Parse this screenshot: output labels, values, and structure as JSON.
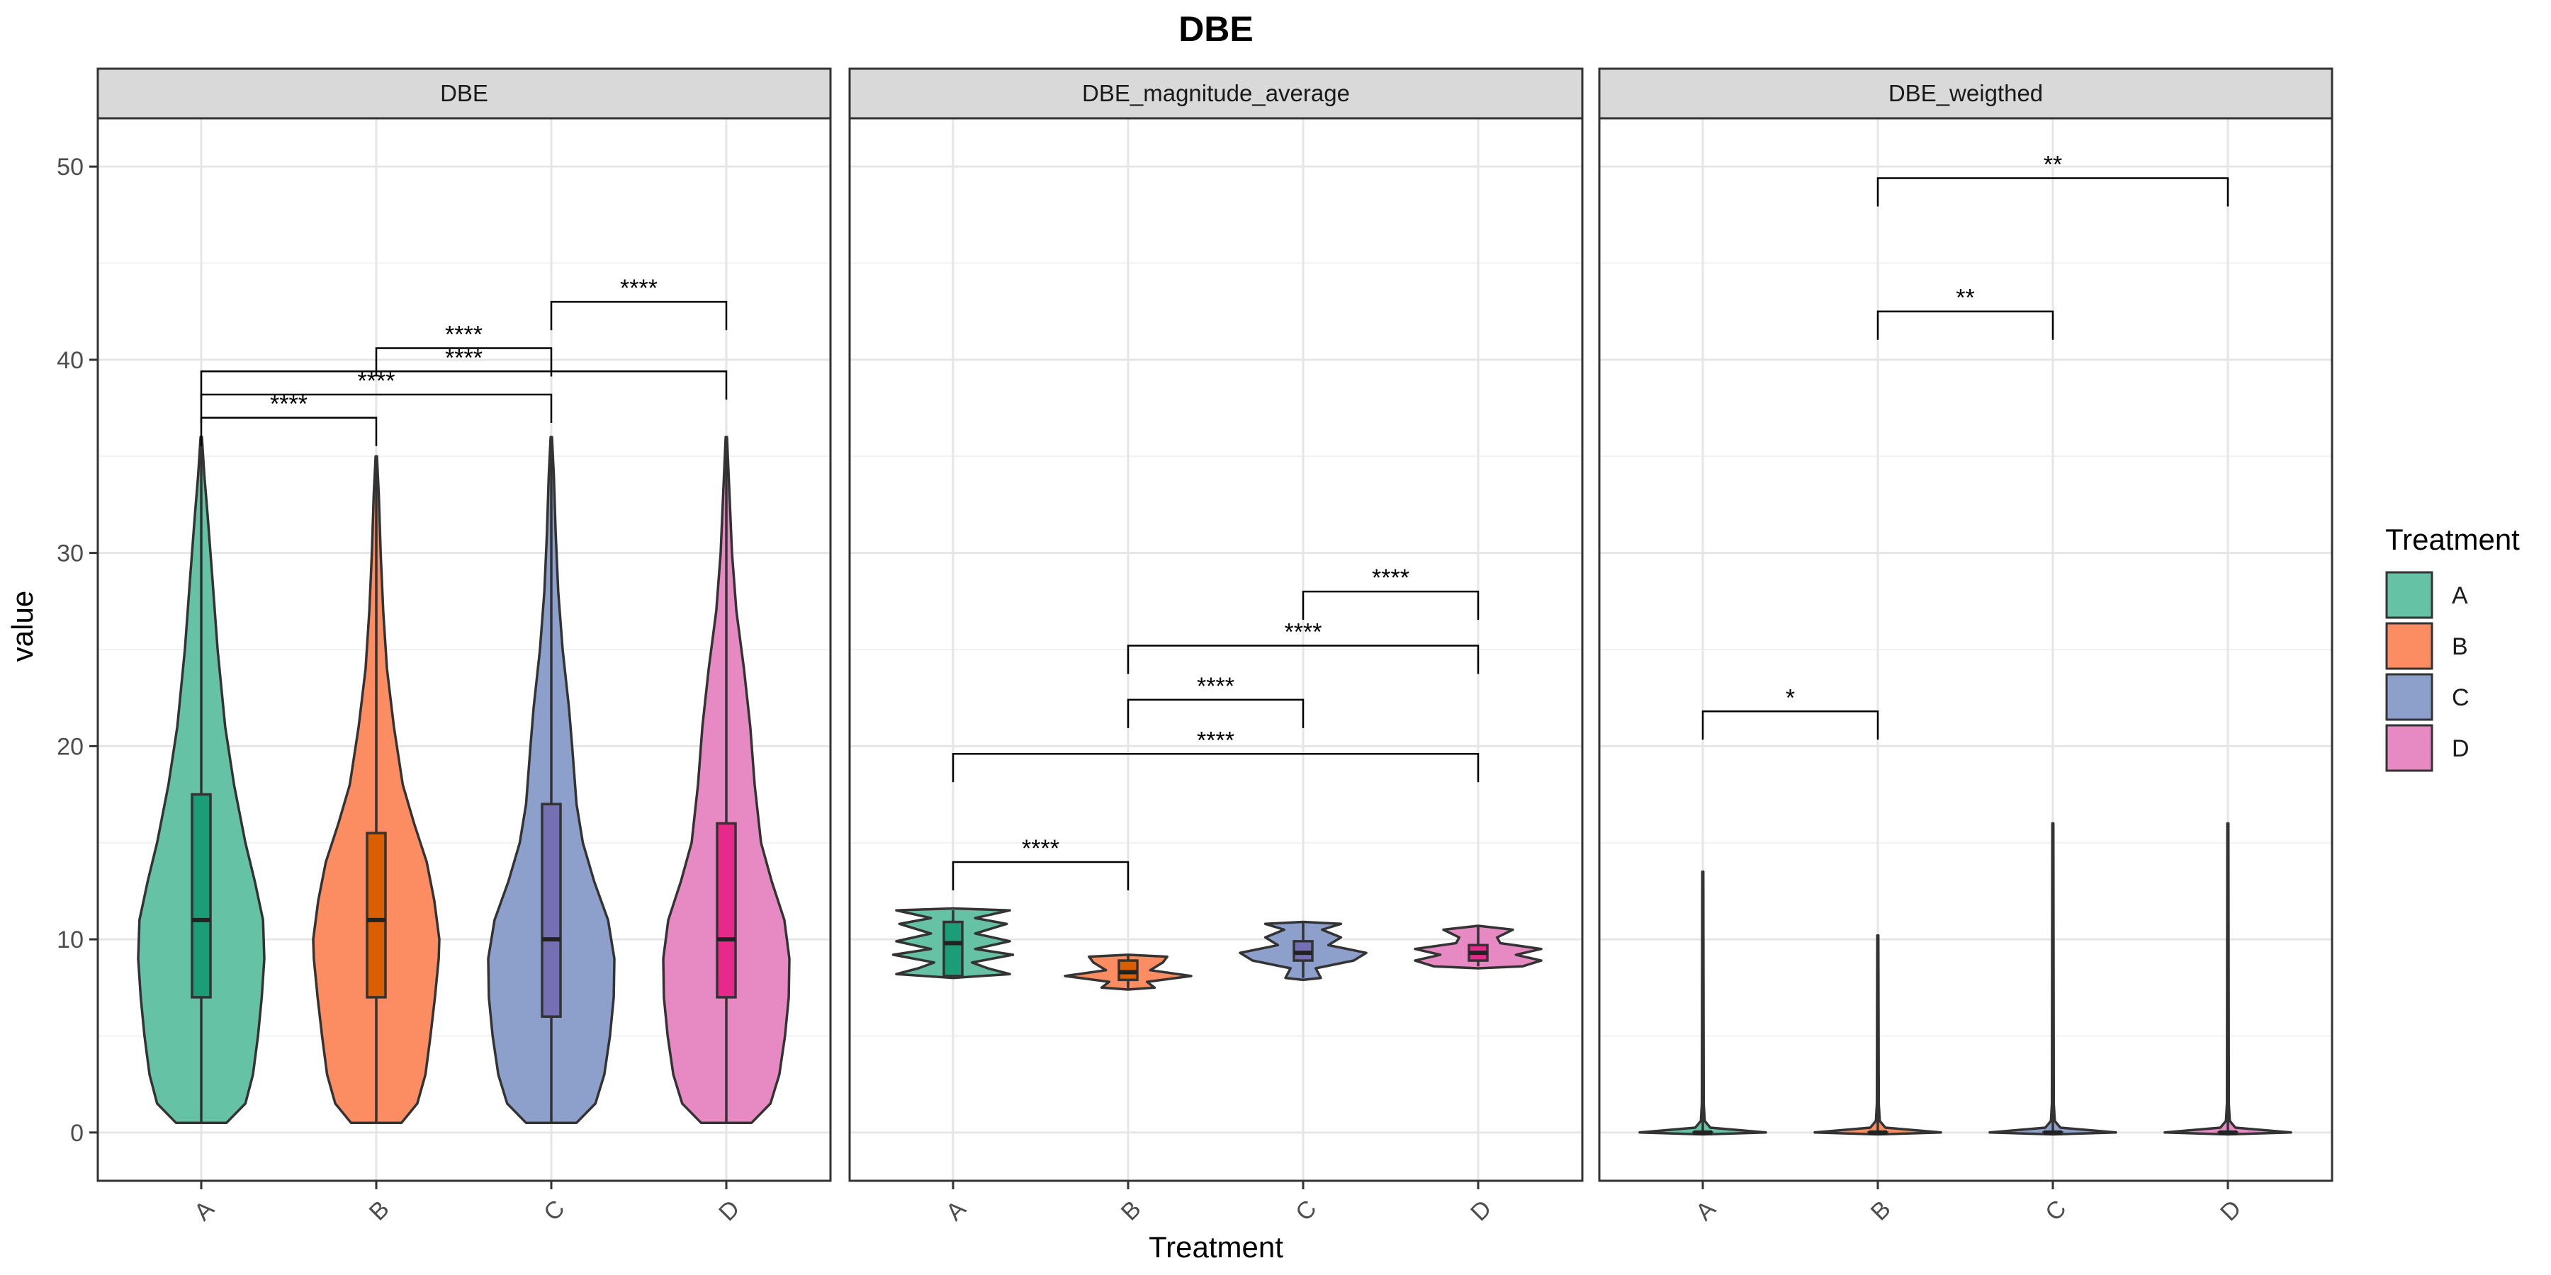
{
  "chart_data": {
    "type": "violin",
    "title": "DBE",
    "xlabel": "Treatment",
    "ylabel": "value",
    "ylim": [
      -2.5,
      52.5
    ],
    "y_ticks": [
      0,
      10,
      20,
      30,
      40,
      50
    ],
    "categories": [
      "A",
      "B",
      "C",
      "D"
    ],
    "grid": true,
    "legend": {
      "title": "Treatment",
      "position": "right",
      "entries": [
        {
          "label": "A",
          "color": "#66C2A5"
        },
        {
          "label": "B",
          "color": "#FC8D62"
        },
        {
          "label": "C",
          "color": "#8DA0CB"
        },
        {
          "label": "D",
          "color": "#E78AC3"
        }
      ]
    },
    "box_colors": [
      "#1B9E77",
      "#D95F02",
      "#7570B3",
      "#E7298A"
    ],
    "panels": [
      {
        "label": "DBE",
        "groups": [
          {
            "category": "A",
            "min": 0.5,
            "q1": 7,
            "median": 11,
            "q3": 17.5,
            "max": 36,
            "profile": [
              [
                0.5,
                0.4
              ],
              [
                1.5,
                0.7
              ],
              [
                3,
                0.82
              ],
              [
                5,
                0.9
              ],
              [
                7,
                0.96
              ],
              [
                9,
                1.0
              ],
              [
                11,
                0.98
              ],
              [
                13,
                0.85
              ],
              [
                15,
                0.7
              ],
              [
                18,
                0.52
              ],
              [
                21,
                0.38
              ],
              [
                25,
                0.26
              ],
              [
                29,
                0.17
              ],
              [
                32,
                0.1
              ],
              [
                34,
                0.05
              ],
              [
                36,
                0.01
              ]
            ]
          },
          {
            "category": "B",
            "min": 0.5,
            "q1": 7,
            "median": 11,
            "q3": 15.5,
            "max": 35,
            "profile": [
              [
                0.5,
                0.4
              ],
              [
                1.5,
                0.65
              ],
              [
                3,
                0.78
              ],
              [
                5,
                0.86
              ],
              [
                7,
                0.93
              ],
              [
                9,
                0.99
              ],
              [
                10,
                1.0
              ],
              [
                12,
                0.92
              ],
              [
                14,
                0.8
              ],
              [
                16,
                0.6
              ],
              [
                18,
                0.42
              ],
              [
                21,
                0.28
              ],
              [
                24,
                0.17
              ],
              [
                27,
                0.11
              ],
              [
                30,
                0.07
              ],
              [
                33,
                0.04
              ],
              [
                35,
                0.01
              ]
            ]
          },
          {
            "category": "C",
            "min": 0.5,
            "q1": 6,
            "median": 10,
            "q3": 17,
            "max": 36,
            "profile": [
              [
                0.5,
                0.4
              ],
              [
                1.5,
                0.7
              ],
              [
                3,
                0.84
              ],
              [
                5,
                0.93
              ],
              [
                7,
                0.99
              ],
              [
                9,
                1.0
              ],
              [
                11,
                0.9
              ],
              [
                13,
                0.68
              ],
              [
                15,
                0.5
              ],
              [
                17,
                0.4
              ],
              [
                20,
                0.33
              ],
              [
                22,
                0.28
              ],
              [
                25,
                0.18
              ],
              [
                28,
                0.11
              ],
              [
                31,
                0.07
              ],
              [
                34,
                0.04
              ],
              [
                36,
                0.01
              ]
            ]
          },
          {
            "category": "D",
            "min": 0.5,
            "q1": 7,
            "median": 10,
            "q3": 16,
            "max": 36,
            "profile": [
              [
                0.5,
                0.4
              ],
              [
                1.5,
                0.7
              ],
              [
                3,
                0.84
              ],
              [
                5,
                0.93
              ],
              [
                7,
                0.99
              ],
              [
                9,
                1.0
              ],
              [
                11,
                0.92
              ],
              [
                13,
                0.72
              ],
              [
                15,
                0.55
              ],
              [
                18,
                0.45
              ],
              [
                21,
                0.38
              ],
              [
                24,
                0.28
              ],
              [
                27,
                0.16
              ],
              [
                30,
                0.09
              ],
              [
                33,
                0.05
              ],
              [
                36,
                0.01
              ]
            ]
          }
        ],
        "brackets": [
          {
            "from": "A",
            "to": "B",
            "y": 37,
            "label": "****"
          },
          {
            "from": "A",
            "to": "C",
            "y": 38.2,
            "label": "****"
          },
          {
            "from": "A",
            "to": "D",
            "y": 39.4,
            "label": "****"
          },
          {
            "from": "B",
            "to": "C",
            "y": 40.6,
            "label": "****"
          },
          {
            "from": "C",
            "to": "D",
            "y": 43,
            "label": "****"
          }
        ]
      },
      {
        "label": "DBE_magnitude_average",
        "groups": [
          {
            "category": "A",
            "min": 8.1,
            "q1": 8.1,
            "median": 9.8,
            "q3": 10.9,
            "max": 11.5,
            "profile": [
              [
                8.0,
                0.0
              ],
              [
                8.2,
                0.9
              ],
              [
                8.5,
                0.55
              ],
              [
                8.8,
                0.3
              ],
              [
                9.2,
                0.95
              ],
              [
                9.5,
                0.35
              ],
              [
                9.9,
                0.9
              ],
              [
                10.3,
                0.35
              ],
              [
                10.8,
                0.85
              ],
              [
                11.1,
                0.35
              ],
              [
                11.5,
                0.9
              ],
              [
                11.6,
                0.0
              ]
            ]
          },
          {
            "category": "B",
            "min": 7.4,
            "q1": 7.9,
            "median": 8.3,
            "q3": 8.9,
            "max": 9.2,
            "profile": [
              [
                7.4,
                0.0
              ],
              [
                7.5,
                0.42
              ],
              [
                7.8,
                0.3
              ],
              [
                8.1,
                1.0
              ],
              [
                8.4,
                0.35
              ],
              [
                8.8,
                0.55
              ],
              [
                9.1,
                0.62
              ],
              [
                9.2,
                0.0
              ]
            ]
          },
          {
            "category": "C",
            "min": 8.0,
            "q1": 8.9,
            "median": 9.3,
            "q3": 9.9,
            "max": 10.9,
            "profile": [
              [
                7.9,
                0.0
              ],
              [
                8.0,
                0.28
              ],
              [
                8.5,
                0.2
              ],
              [
                8.9,
                0.8
              ],
              [
                9.3,
                1.0
              ],
              [
                9.7,
                0.4
              ],
              [
                10.1,
                0.6
              ],
              [
                10.5,
                0.3
              ],
              [
                10.8,
                0.6
              ],
              [
                10.9,
                0.0
              ]
            ]
          },
          {
            "category": "D",
            "min": 8.6,
            "q1": 8.9,
            "median": 9.3,
            "q3": 9.7,
            "max": 10.7,
            "profile": [
              [
                8.5,
                0.0
              ],
              [
                8.6,
                0.7
              ],
              [
                8.9,
                1.0
              ],
              [
                9.2,
                0.6
              ],
              [
                9.5,
                1.0
              ],
              [
                9.8,
                0.35
              ],
              [
                10.1,
                0.3
              ],
              [
                10.5,
                0.55
              ],
              [
                10.7,
                0.0
              ]
            ]
          }
        ],
        "brackets": [
          {
            "from": "A",
            "to": "B",
            "y": 14,
            "label": "****"
          },
          {
            "from": "A",
            "to": "D",
            "y": 19.6,
            "label": "****"
          },
          {
            "from": "B",
            "to": "C",
            "y": 22.4,
            "label": "****"
          },
          {
            "from": "B",
            "to": "D",
            "y": 25.2,
            "label": "****"
          },
          {
            "from": "C",
            "to": "D",
            "y": 28,
            "label": "****"
          }
        ]
      },
      {
        "label": "DBE_weigthed",
        "groups": [
          {
            "category": "A",
            "min": 0,
            "q1": 0,
            "median": 0,
            "q3": 0,
            "max": 13.5,
            "profile": [
              [
                -0.1,
                0.0
              ],
              [
                0,
                1.0
              ],
              [
                0.25,
                0.12
              ],
              [
                0.6,
                0.03
              ],
              [
                1.5,
                0.015
              ],
              [
                13.5,
                0.008
              ]
            ]
          },
          {
            "category": "B",
            "min": 0,
            "q1": 0,
            "median": 0,
            "q3": 0,
            "max": 10.2,
            "profile": [
              [
                -0.1,
                0.0
              ],
              [
                0,
                1.0
              ],
              [
                0.25,
                0.12
              ],
              [
                0.6,
                0.03
              ],
              [
                1.5,
                0.015
              ],
              [
                10.2,
                0.008
              ]
            ]
          },
          {
            "category": "C",
            "min": 0,
            "q1": 0,
            "median": 0,
            "q3": 0,
            "max": 16,
            "profile": [
              [
                -0.1,
                0.0
              ],
              [
                0,
                1.0
              ],
              [
                0.25,
                0.12
              ],
              [
                0.6,
                0.03
              ],
              [
                1.5,
                0.015
              ],
              [
                16,
                0.008
              ]
            ]
          },
          {
            "category": "D",
            "min": 0,
            "q1": 0,
            "median": 0,
            "q3": 0,
            "max": 16,
            "profile": [
              [
                -0.1,
                0.0
              ],
              [
                0,
                1.0
              ],
              [
                0.25,
                0.12
              ],
              [
                0.6,
                0.03
              ],
              [
                1.5,
                0.015
              ],
              [
                16,
                0.008
              ]
            ]
          }
        ],
        "brackets": [
          {
            "from": "A",
            "to": "B",
            "y": 21.8,
            "label": "*"
          },
          {
            "from": "B",
            "to": "C",
            "y": 42.5,
            "label": "**"
          },
          {
            "from": "B",
            "to": "D",
            "y": 49.4,
            "label": "**"
          }
        ]
      }
    ]
  }
}
